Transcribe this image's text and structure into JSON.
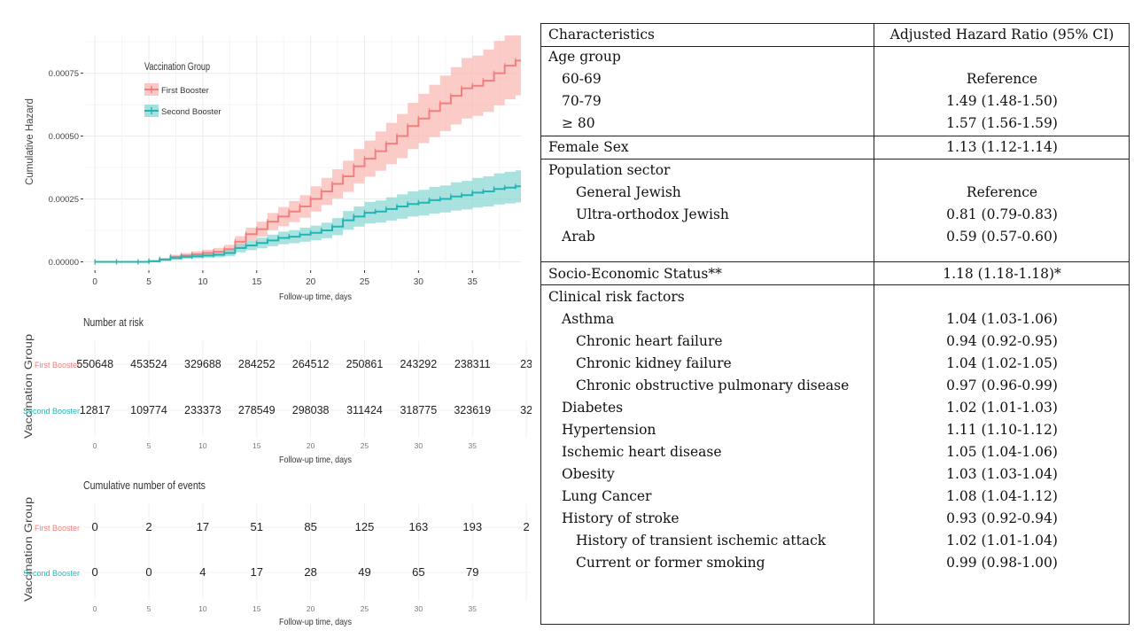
{
  "chart_data": {
    "type": "line",
    "legend_title": "Vaccination Group",
    "legend_placement": "top-left",
    "ylabel": "Cumulative Hazard",
    "xlabel": "Follow-up time, days",
    "x_ticks": [
      0,
      5,
      10,
      15,
      20,
      25,
      30,
      35
    ],
    "y_ticks": [
      "0.00000",
      "0.00025",
      "0.00050",
      "0.00075"
    ],
    "xlim": [
      -1,
      39.5
    ],
    "ylim": [
      -3e-05,
      0.0009
    ],
    "grid": true,
    "series": [
      {
        "name": "First Booster",
        "color": "#f07f7f",
        "band_color": "#f9b9b6",
        "x": [
          0,
          2,
          4,
          5,
          6,
          7,
          8,
          9,
          10,
          11,
          12,
          13,
          14,
          15,
          16,
          17,
          18,
          19,
          20,
          21,
          22,
          23,
          24,
          25,
          26,
          27,
          28,
          29,
          30,
          31,
          32,
          33,
          34,
          35,
          36,
          37,
          38,
          39
        ],
        "y": [
          0,
          0,
          0,
          3e-06,
          1e-05,
          2e-05,
          2.5e-05,
          3e-05,
          3.5e-05,
          4e-05,
          5e-05,
          8e-05,
          0.00011,
          0.00013,
          0.00016,
          0.00018,
          0.0002,
          0.00022,
          0.00025,
          0.00028,
          0.00031,
          0.00034,
          0.00038,
          0.00041,
          0.00044,
          0.00047,
          0.0005,
          0.00054,
          0.00057,
          0.0006,
          0.00063,
          0.00066,
          0.00069,
          0.0007,
          0.00072,
          0.00075,
          0.00078,
          0.0008
        ],
        "lower": [
          0,
          0,
          0,
          1e-06,
          5e-06,
          1.2e-05,
          1.5e-05,
          1.8e-05,
          2.2e-05,
          2.5e-05,
          3.2e-05,
          5.8e-05,
          8.4e-05,
          0.0001,
          0.000126,
          0.000142,
          0.000158,
          0.000175,
          0.0002,
          0.000226,
          0.000252,
          0.000278,
          0.000312,
          0.000338,
          0.000362,
          0.000388,
          0.000412,
          0.000448,
          0.000472,
          0.000496,
          0.00052,
          0.000546,
          0.00057,
          0.00058,
          0.000596,
          0.000622,
          0.000646,
          0.000662
        ],
        "upper": [
          0,
          0,
          0,
          5e-06,
          1.5e-05,
          2.8e-05,
          3.5e-05,
          4.2e-05,
          4.8e-05,
          5.5e-05,
          6.8e-05,
          0.000102,
          0.000136,
          0.00016,
          0.000194,
          0.000218,
          0.000242,
          0.000265,
          0.0003,
          0.000334,
          0.000368,
          0.000402,
          0.000448,
          0.000482,
          0.000518,
          0.000552,
          0.000588,
          0.000632,
          0.000668,
          0.000704,
          0.00074,
          0.000774,
          0.00081,
          0.00082,
          0.000844,
          0.000878,
          0.0009,
          0.0009
        ]
      },
      {
        "name": "Second Booster",
        "color": "#23b5b5",
        "band_color": "#8ed8d6",
        "x": [
          0,
          2,
          4,
          5,
          6,
          7,
          8,
          9,
          10,
          11,
          12,
          13,
          14,
          15,
          16,
          17,
          18,
          19,
          20,
          21,
          22,
          23,
          24,
          25,
          26,
          27,
          28,
          29,
          30,
          31,
          32,
          33,
          34,
          35,
          36,
          37,
          38,
          39
        ],
        "y": [
          0,
          0,
          0,
          2e-06,
          8e-06,
          1.5e-05,
          2e-05,
          2.2e-05,
          2.5e-05,
          2.8e-05,
          3.5e-05,
          5.5e-05,
          6.5e-05,
          7.5e-05,
          8.5e-05,
          9.5e-05,
          0.0001,
          0.000108,
          0.000115,
          0.000125,
          0.00014,
          0.000165,
          0.00018,
          0.000195,
          0.0002,
          0.00021,
          0.00022,
          0.00023,
          0.000235,
          0.000245,
          0.00025,
          0.00026,
          0.000265,
          0.000275,
          0.00028,
          0.00029,
          0.000295,
          0.0003
        ],
        "lower": [
          0,
          0,
          0,
          1e-06,
          4e-06,
          9e-06,
          1.2e-05,
          1.4e-05,
          1.6e-05,
          1.8e-05,
          2.2e-05,
          3.8e-05,
          4.6e-05,
          5.4e-05,
          6.2e-05,
          7e-05,
          7.4e-05,
          8e-05,
          8.6e-05,
          9.4e-05,
          0.000106,
          0.000128,
          0.00014,
          0.000152,
          0.000156,
          0.000164,
          0.000172,
          0.00018,
          0.000184,
          0.000192,
          0.000196,
          0.000204,
          0.000208,
          0.000216,
          0.00022,
          0.000228,
          0.000232,
          0.000236
        ],
        "upper": [
          0,
          0,
          0,
          3e-06,
          1.2e-05,
          2.1e-05,
          2.8e-05,
          3e-05,
          3.4e-05,
          3.8e-05,
          4.8e-05,
          7.2e-05,
          8.4e-05,
          9.6e-05,
          0.000108,
          0.00012,
          0.000126,
          0.000136,
          0.000144,
          0.000156,
          0.000174,
          0.000202,
          0.00022,
          0.000238,
          0.000244,
          0.000256,
          0.000268,
          0.00028,
          0.000286,
          0.000298,
          0.000304,
          0.000316,
          0.000322,
          0.000334,
          0.00034,
          0.000352,
          0.000358,
          0.000364
        ]
      }
    ],
    "risk_table": {
      "title": "Number at risk",
      "ylabel": "Vaccination Group",
      "xlabel": "Follow-up time, days",
      "x_ticks": [
        0,
        5,
        10,
        15,
        20,
        25,
        30,
        35
      ],
      "rows": [
        {
          "group": "First Booster",
          "values": [
            "550648",
            "453524",
            "329688",
            "284252",
            "264512",
            "250861",
            "243292",
            "238311",
            "23"
          ]
        },
        {
          "group": "Second Booster",
          "values": [
            "12817",
            "109774",
            "233373",
            "278549",
            "298038",
            "311424",
            "318775",
            "323619",
            "32"
          ]
        }
      ]
    },
    "events_table": {
      "title": "Cumulative number of events",
      "ylabel": "Vaccination Group",
      "xlabel": "Follow-up time, days",
      "x_ticks": [
        0,
        5,
        10,
        15,
        20,
        25,
        30,
        35
      ],
      "rows": [
        {
          "group": "First Booster",
          "values": [
            "0",
            "2",
            "17",
            "51",
            "85",
            "125",
            "163",
            "193",
            "2"
          ]
        },
        {
          "group": "Second Booster",
          "values": [
            "0",
            "0",
            "4",
            "17",
            "28",
            "49",
            "65",
            "79",
            ""
          ]
        }
      ]
    }
  },
  "table": {
    "header": {
      "characteristic": "Characteristics",
      "hr": "Adjusted Hazard Ratio (95% CI)"
    },
    "rows": [
      {
        "label": "Age group",
        "value": ""
      },
      {
        "label": "60-69",
        "value": "Reference"
      },
      {
        "label": "70-79",
        "value": "1.49 (1.48-1.50)"
      },
      {
        "label": "≥ 80",
        "value": "1.57 (1.56-1.59)"
      },
      {
        "label": "Female Sex",
        "value": "1.13 (1.12-1.14)"
      },
      {
        "label": "Population sector",
        "value": ""
      },
      {
        "label": "General Jewish",
        "value": "Reference"
      },
      {
        "label": "Ultra-orthodox Jewish",
        "value": "0.81 (0.79-0.83)"
      },
      {
        "label": "Arab",
        "value": "0.59 (0.57-0.60)"
      },
      {
        "label": "Socio-Economic Status**",
        "value": "1.18 (1.18-1.18)*"
      },
      {
        "label": "Clinical risk factors",
        "value": ""
      },
      {
        "label": "Asthma",
        "value": "1.04 (1.03-1.06)"
      },
      {
        "label": "Chronic heart failure",
        "value": "0.94 (0.92-0.95)"
      },
      {
        "label": "Chronic kidney failure",
        "value": "1.04 (1.02-1.05)"
      },
      {
        "label": "Chronic obstructive pulmonary disease",
        "value": "0.97 (0.96-0.99)"
      },
      {
        "label": "Diabetes",
        "value": "1.02 (1.01-1.03)"
      },
      {
        "label": "Hypertension",
        "value": "1.11 (1.10-1.12)"
      },
      {
        "label": "Ischemic heart disease",
        "value": "1.05 (1.04-1.06)"
      },
      {
        "label": "Obesity",
        "value": "1.03 (1.03-1.04)"
      },
      {
        "label": "Lung Cancer",
        "value": "1.08 (1.04-1.12)"
      },
      {
        "label": "History of stroke",
        "value": "0.93 (0.92-0.94)"
      },
      {
        "label": "History of transient ischemic attack",
        "value": "1.02 (1.01-1.04)"
      },
      {
        "label": "Current or former smoking",
        "value": "0.99 (0.98-1.00)"
      }
    ]
  }
}
